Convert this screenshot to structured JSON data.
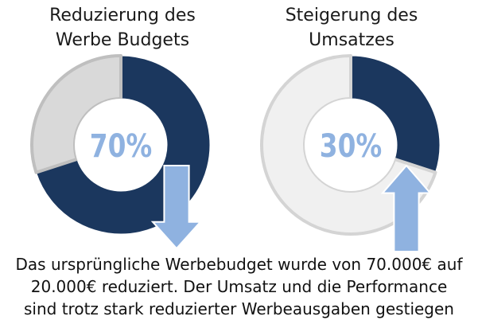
{
  "colors": {
    "highlight": "#1b375e",
    "remainder_1": "#d9d9d9",
    "remainder_2": "#f0f0f0",
    "ring_border_1": "#bfbfbf",
    "ring_border_2": "#d4d4d4",
    "percent_text": "#8fb2e0",
    "arrow_fill": "#8fb2e0",
    "arrow_stroke": "#ffffff"
  },
  "chart_data": [
    {
      "type": "pie",
      "title_lines": [
        "Reduzierung des",
        "Werbe Budgets"
      ],
      "center_label": "70%",
      "slices": [
        {
          "label": "Reduzierung",
          "value": 70,
          "color": "#1b375e"
        },
        {
          "label": "Rest",
          "value": 30,
          "color": "#d9d9d9"
        }
      ],
      "arrow": "down",
      "arrow_icon": "arrow-down-icon"
    },
    {
      "type": "pie",
      "title_lines": [
        "Steigerung des",
        "Umsatzes"
      ],
      "center_label": "30%",
      "slices": [
        {
          "label": "Steigerung",
          "value": 30,
          "color": "#1b375e"
        },
        {
          "label": "Rest",
          "value": 70,
          "color": "#f0f0f0"
        }
      ],
      "arrow": "up",
      "arrow_icon": "arrow-up-icon"
    }
  ],
  "caption": {
    "lines": [
      "Das ursprüngliche Werbebudget wurde von 70.000€ auf",
      "20.000€ reduziert. Der Umsatz und die Performance",
      "sind trotz stark reduzierter Werbeausgaben gestiegen"
    ]
  }
}
